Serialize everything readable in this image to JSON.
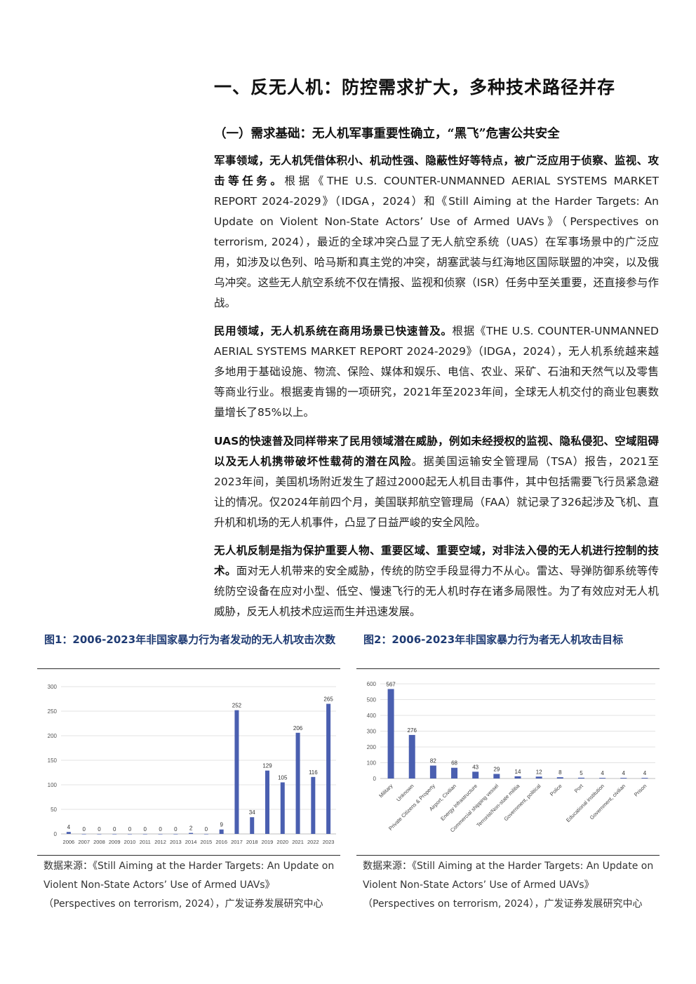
{
  "heading": "一、反无人机：防控需求扩大，多种技术路径并存",
  "subheading": "（一）需求基础：无人机军事重要性确立，“黑飞”危害公共安全",
  "paragraphs": [
    {
      "bold": "军事领域，无人机凭借体积小、机动性强、隐蔽性好等特点，被广泛应用于侦察、监视、攻击等任务。",
      "text": "根据《THE U.S. COUNTER-UNMANNED AERIAL SYSTEMS MARKET REPORT 2024-2029》（IDGA，2024）和《Still Aiming at the Harder Targets: An Update on Violent Non-State Actors’ Use of Armed UAVs》（Perspectives on terrorism, 2024），最近的全球冲突凸显了无人航空系统（UAS）在军事场景中的广泛应用，如涉及以色列、哈马斯和真主党的冲突，胡塞武装与红海地区国际联盟的冲突，以及俄乌冲突。这些无人航空系统不仅在情报、监视和侦察（ISR）任务中至关重要，还直接参与作战。"
    },
    {
      "bold": "民用领域，无人机系统在商用场景已快速普及。",
      "text": "根据《THE U.S. COUNTER-UNMANNED AERIAL SYSTEMS MARKET REPORT 2024-2029》（IDGA，2024），无人机系统越来越多地用于基础设施、物流、保险、媒体和娱乐、电信、农业、采矿、石油和天然气以及零售等商业行业。根据麦肯锡的一项研究，2021年至2023年间，全球无人机交付的商业包裹数量增长了85%以上。"
    },
    {
      "bold": "UAS的快速普及同样带来了民用领域潜在威胁，例如未经授权的监视、隐私侵犯、空域阻碍以及无人机携带破坏性载荷的潜在风险",
      "text": "。据美国运输安全管理局（TSA）报告，2021至2023年间，美国机场附近发生了超过2000起无人机目击事件，其中包括需要飞行员紧急避让的情况。仅2024年前四个月，美国联邦航空管理局（FAA）就记录了326起涉及飞机、直升机和机场的无人机事件，凸显了日益严峻的安全风险。"
    },
    {
      "bold": "无人机反制是指为保护重要人物、重要区域、重要空域，对非法入侵的无人机进行控制的技术。",
      "text": "面对无人机带来的安全威胁，传统的防空手段显得力不从心。雷达、导弹防御系统等传统防空设备在应对小型、低空、慢速飞行的无人机时存在诸多局限性。为了有效应对无人机威胁，反无人机技术应运而生并迅速发展。"
    }
  ],
  "figures": [
    {
      "title": "图1：2006-2023年非国家暴力行为者发动的无人机攻击次数",
      "source": "数据来源：《Still Aiming at the Harder Targets: An Update on Violent Non-State Actors’ Use of Armed UAVs》（Perspectives on terrorism, 2024），广发证券发展研究中心"
    },
    {
      "title": "图2：2006-2023年非国家暴力行为者无人机攻击目标",
      "source": "数据来源：《Still Aiming at the Harder Targets: An Update on Violent Non-State Actors’ Use of Armed UAVs》（Perspectives on terrorism, 2024），广发证券发展研究中心"
    }
  ],
  "chart_data": [
    {
      "type": "bar",
      "title": "",
      "xlabel": "",
      "ylabel": "",
      "categories": [
        "2006",
        "2007",
        "2008",
        "2009",
        "2010",
        "2011",
        "2012",
        "2013",
        "2014",
        "2015",
        "2016",
        "2017",
        "2018",
        "2019",
        "2020",
        "2021",
        "2022",
        "2023"
      ],
      "values": [
        4,
        0,
        0,
        0,
        0,
        0,
        0,
        0,
        2,
        0,
        9,
        252,
        34,
        129,
        105,
        206,
        116,
        265
      ],
      "data_labels": [
        "4",
        "0",
        "0",
        "0",
        "0",
        "0",
        "0",
        "0",
        "2",
        "0",
        "9",
        "252",
        "34",
        "129",
        "105",
        "206",
        "116",
        "265"
      ],
      "yticks": [
        "0",
        "50",
        "100",
        "150",
        "200",
        "250",
        "300"
      ],
      "ylim": [
        0,
        300
      ],
      "bar_color": "#4a5fb0",
      "grid": true,
      "legend": "none"
    },
    {
      "type": "bar",
      "title": "",
      "xlabel": "",
      "ylabel": "",
      "categories": [
        "Military",
        "Unknown",
        "Private Citizens & Property",
        "Airport, Civilian",
        "Energy Infrastructure",
        "Commercial shipping vessel",
        "Terrorist/Non-state militia",
        "Government, political",
        "Police",
        "Port",
        "Educational institution",
        "Government, civilian",
        "Prison"
      ],
      "values": [
        567,
        276,
        82,
        68,
        43,
        29,
        14,
        12,
        8,
        5,
        4,
        4,
        4
      ],
      "data_labels": [
        "567",
        "276",
        "82",
        "68",
        "43",
        "29",
        "14",
        "12",
        "8",
        "5",
        "4",
        "4",
        "4"
      ],
      "yticks": [
        "0",
        "100",
        "200",
        "300",
        "400",
        "500",
        "600"
      ],
      "ylim": [
        0,
        600
      ],
      "bar_color": "#4a5fb0",
      "grid": true,
      "legend": "none"
    }
  ]
}
